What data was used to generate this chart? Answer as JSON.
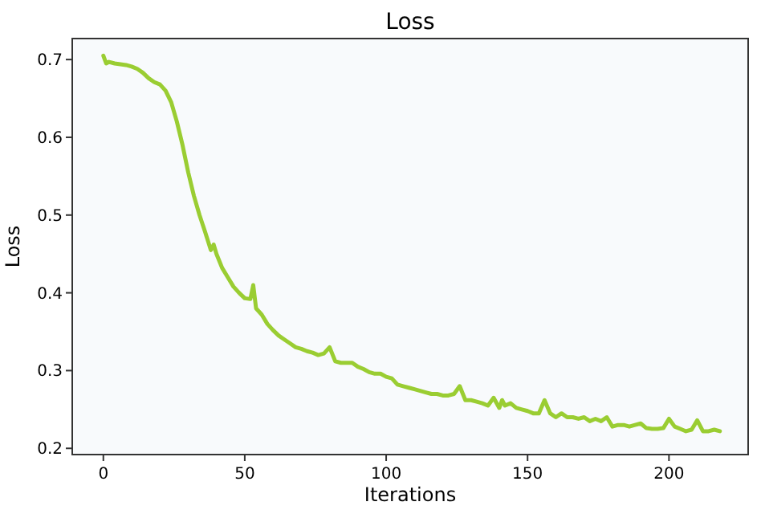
{
  "chart_data": {
    "type": "line",
    "title": "Loss",
    "xlabel": "Iterations",
    "ylabel": "Loss",
    "xlim": [
      -11,
      228
    ],
    "ylim": [
      0.192,
      0.727
    ],
    "xticks": [
      0,
      50,
      100,
      150,
      200
    ],
    "yticks": [
      0.2,
      0.3,
      0.4,
      0.5,
      0.6,
      0.7
    ],
    "grid": false,
    "series": [
      {
        "color": "#9acd32",
        "x": [
          0,
          1,
          2,
          4,
          6,
          8,
          10,
          12,
          14,
          16,
          18,
          20,
          22,
          24,
          26,
          28,
          30,
          32,
          34,
          36,
          38,
          39,
          40,
          42,
          44,
          46,
          48,
          50,
          52,
          53,
          54,
          56,
          58,
          60,
          62,
          64,
          66,
          68,
          70,
          72,
          74,
          76,
          78,
          80,
          82,
          84,
          86,
          88,
          90,
          92,
          94,
          96,
          98,
          100,
          102,
          104,
          106,
          108,
          110,
          112,
          114,
          116,
          118,
          120,
          122,
          124,
          126,
          128,
          130,
          132,
          134,
          136,
          138,
          140,
          141,
          142,
          144,
          146,
          148,
          150,
          152,
          154,
          156,
          158,
          160,
          162,
          164,
          166,
          168,
          170,
          172,
          174,
          176,
          178,
          180,
          182,
          184,
          186,
          188,
          190,
          192,
          194,
          196,
          198,
          200,
          202,
          204,
          206,
          208,
          210,
          212,
          214,
          216,
          218
        ],
        "values": [
          0.705,
          0.695,
          0.697,
          0.695,
          0.694,
          0.693,
          0.691,
          0.688,
          0.683,
          0.676,
          0.671,
          0.668,
          0.66,
          0.645,
          0.62,
          0.59,
          0.555,
          0.525,
          0.5,
          0.478,
          0.455,
          0.462,
          0.45,
          0.432,
          0.42,
          0.408,
          0.4,
          0.393,
          0.392,
          0.41,
          0.38,
          0.372,
          0.36,
          0.352,
          0.345,
          0.34,
          0.335,
          0.33,
          0.328,
          0.325,
          0.323,
          0.32,
          0.322,
          0.33,
          0.312,
          0.31,
          0.31,
          0.31,
          0.305,
          0.302,
          0.298,
          0.296,
          0.296,
          0.292,
          0.29,
          0.282,
          0.28,
          0.278,
          0.276,
          0.274,
          0.272,
          0.27,
          0.27,
          0.268,
          0.268,
          0.27,
          0.28,
          0.262,
          0.262,
          0.26,
          0.258,
          0.255,
          0.265,
          0.252,
          0.262,
          0.255,
          0.258,
          0.252,
          0.25,
          0.248,
          0.245,
          0.245,
          0.262,
          0.245,
          0.24,
          0.245,
          0.24,
          0.24,
          0.238,
          0.24,
          0.235,
          0.238,
          0.235,
          0.24,
          0.228,
          0.23,
          0.23,
          0.228,
          0.23,
          0.232,
          0.226,
          0.225,
          0.225,
          0.226,
          0.238,
          0.228,
          0.225,
          0.222,
          0.224,
          0.236,
          0.222,
          0.222,
          0.224,
          0.222
        ]
      }
    ]
  }
}
